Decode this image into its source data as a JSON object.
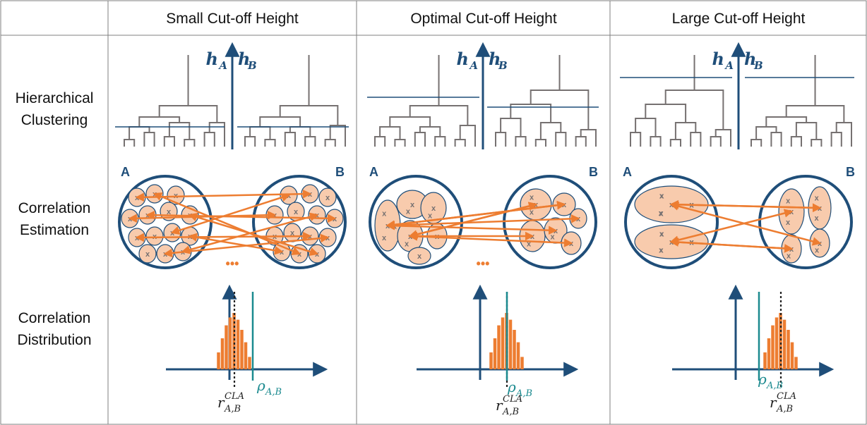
{
  "columns": [
    {
      "label": "Small Cut-off Height",
      "cut_level": "small"
    },
    {
      "label": "Optimal Cut-off Height",
      "cut_level": "optimal"
    },
    {
      "label": "Large Cut-off Height",
      "cut_level": "large"
    }
  ],
  "rows": [
    {
      "line1": "Hierarchical",
      "line2": "Clustering"
    },
    {
      "line1": "Correlation",
      "line2": "Estimation"
    },
    {
      "line1": "Correlation",
      "line2": "Distribution"
    }
  ],
  "symbols": {
    "h_a": "h",
    "h_a_sub": "A",
    "h_b": "h",
    "h_b_sub": "B",
    "group_a": "A",
    "group_b": "B",
    "cross": "x",
    "ellipsis": "•••",
    "rho": "ρ",
    "rho_sub": "A,B",
    "r": "r",
    "r_sub": "A,B",
    "r_sup": "CLA"
  },
  "colors": {
    "navy": "#1f4e79",
    "orange": "#ed7d31",
    "peach": "#f8cbad",
    "teal": "#1b8a8f",
    "gray": "#767171",
    "border": "#7f7f7f"
  }
}
